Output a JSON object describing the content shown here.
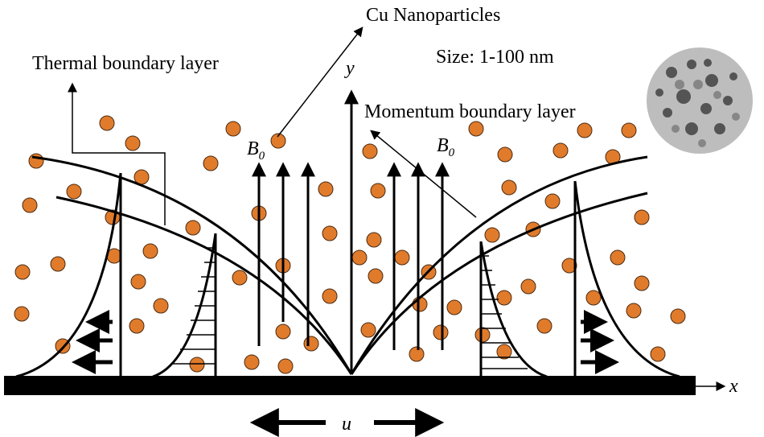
{
  "labels": {
    "nanoparticles": "Cu Nanoparticles",
    "size": "Size: 1-100 nm",
    "thermal_layer": "Thermal boundary layer",
    "momentum_layer": "Momentum boundary layer"
  },
  "axes": {
    "y": "y",
    "x": "x",
    "velocity": "u"
  },
  "field_labels": [
    {
      "symbol": "B",
      "subscript": "0"
    },
    {
      "symbol": "B",
      "subscript": "0"
    }
  ]
}
